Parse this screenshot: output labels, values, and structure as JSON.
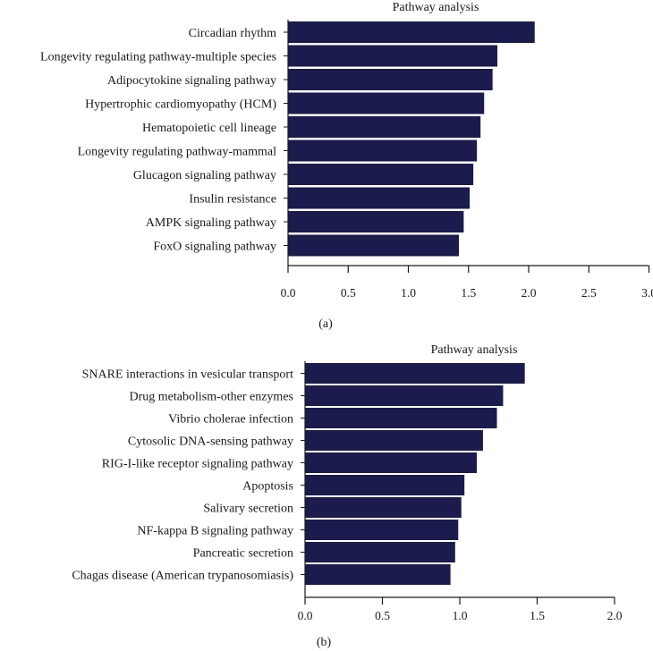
{
  "chart_data": [
    {
      "type": "bar",
      "orientation": "horizontal",
      "title": "Pathway analysis",
      "panel_label": "(a)",
      "bar_color": "#1b1b4d",
      "categories": [
        "Circadian rhythm",
        "Longevity regulating pathway-multiple species",
        "Adipocytokine signaling pathway",
        "Hypertrophic cardiomyopathy (HCM)",
        "Hematopoietic cell lineage",
        "Longevity regulating pathway-mammal",
        "Glucagon signaling pathway",
        "Insulin resistance",
        "AMPK signaling pathway",
        "FoxO signaling pathway"
      ],
      "values": [
        2.05,
        1.74,
        1.7,
        1.63,
        1.6,
        1.57,
        1.54,
        1.51,
        1.46,
        1.42
      ],
      "xlim": [
        0,
        3
      ],
      "xticks": [
        "0.0",
        "0.5",
        "1.0",
        "1.5",
        "2.0",
        "2.5",
        "3.0"
      ],
      "grid": false
    },
    {
      "type": "bar",
      "orientation": "horizontal",
      "title": "Pathway analysis",
      "panel_label": "(b)",
      "bar_color": "#1b1b4d",
      "categories": [
        "SNARE interactions in vesicular transport",
        "Drug metabolism-other enzymes",
        "Vibrio cholerae infection",
        "Cytosolic DNA-sensing pathway",
        "RIG-I-like receptor signaling pathway",
        "Apoptosis",
        "Salivary secretion",
        "NF-kappa B signaling pathway",
        "Pancreatic secretion",
        "Chagas disease (American trypanosomiasis)"
      ],
      "values": [
        1.42,
        1.28,
        1.24,
        1.15,
        1.11,
        1.03,
        1.01,
        0.99,
        0.97,
        0.94
      ],
      "xlim": [
        0,
        2
      ],
      "xticks": [
        "0.0",
        "0.5",
        "1.0",
        "1.5",
        "2.0"
      ],
      "grid": false
    }
  ]
}
